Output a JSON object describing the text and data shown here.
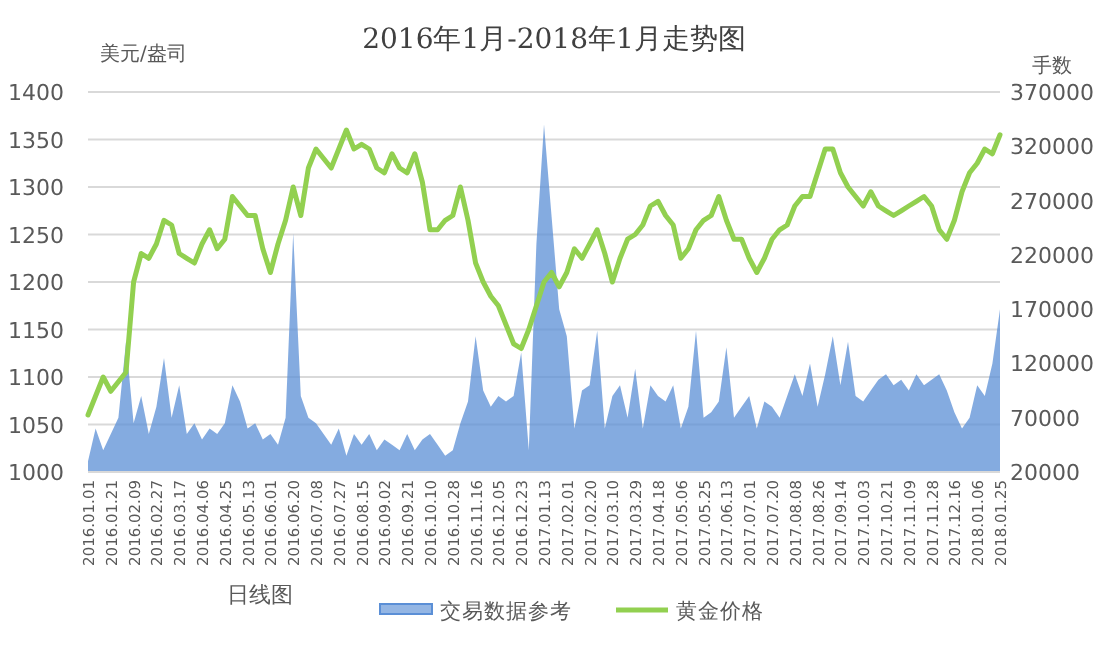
{
  "chart_data": {
    "type": "line",
    "title": "2016年1月-2018年1月走势图",
    "xlabel": "日线图",
    "ylabel": "美元/盎司",
    "y2label": "手数",
    "categories": [
      "2016.01.01",
      null,
      null,
      "2016.01.21",
      null,
      null,
      "2016.02.09",
      null,
      null,
      "2016.02.27",
      null,
      null,
      "2016.03.17",
      null,
      null,
      "2016.04.06",
      null,
      null,
      "2016.04.25",
      null,
      null,
      "2016.05.13",
      null,
      null,
      "2016.06.01",
      null,
      null,
      "2016.06.20",
      null,
      null,
      "2016.07.08",
      null,
      null,
      "2016.07.27",
      null,
      null,
      "2016.08.15",
      null,
      null,
      "2016.09.02",
      null,
      null,
      "2016.09.21",
      null,
      null,
      "2016.10.10",
      null,
      null,
      "2016.10.28",
      null,
      null,
      "2016.11.16",
      null,
      null,
      "2016.12.05",
      null,
      null,
      "2016.12.23",
      null,
      null,
      "2017.01.13",
      null,
      null,
      "2017.02.01",
      null,
      null,
      "2017.02.20",
      null,
      null,
      "2017.03.10",
      null,
      null,
      "2017.03.29",
      null,
      null,
      "2017.04.18",
      null,
      null,
      "2017.05.06",
      null,
      null,
      "2017.05.25",
      null,
      null,
      "2017.06.13",
      null,
      null,
      "2017.07.01",
      null,
      null,
      "2017.07.20",
      null,
      null,
      "2017.08.08",
      null,
      null,
      "2017.08.26",
      null,
      null,
      "2017.09.14",
      null,
      null,
      "2017.10.03",
      null,
      null,
      "2017.10.21",
      null,
      null,
      "2017.11.09",
      null,
      null,
      "2017.11.28",
      null,
      null,
      "2017.12.16",
      null,
      null,
      "2018.01.06",
      null,
      null,
      "2018.01.25"
    ],
    "series": [
      {
        "name": "交易数据参考",
        "type": "area",
        "axis": "y2",
        "color": "#5b8fd6",
        "values": [
          30000,
          60000,
          40000,
          55000,
          70000,
          140000,
          65000,
          90000,
          55000,
          80000,
          125000,
          70000,
          100000,
          55000,
          65000,
          50000,
          60000,
          55000,
          65000,
          100000,
          85000,
          60000,
          65000,
          50000,
          55000,
          45000,
          70000,
          240000,
          90000,
          70000,
          65000,
          55000,
          45000,
          60000,
          35000,
          55000,
          45000,
          55000,
          40000,
          50000,
          45000,
          40000,
          55000,
          40000,
          50000,
          55000,
          45000,
          35000,
          40000,
          65000,
          85000,
          145000,
          95000,
          80000,
          90000,
          85000,
          90000,
          130000,
          40000,
          230000,
          340000,
          255000,
          170000,
          145000,
          60000,
          95000,
          100000,
          150000,
          60000,
          90000,
          100000,
          70000,
          115000,
          60000,
          100000,
          90000,
          85000,
          100000,
          60000,
          80000,
          150000,
          70000,
          75000,
          85000,
          135000,
          70000,
          80000,
          90000,
          60000,
          85000,
          80000,
          70000,
          90000,
          110000,
          90000,
          120000,
          80000,
          110000,
          145000,
          100000,
          140000,
          90000,
          85000,
          95000,
          105000,
          110000,
          100000,
          105000,
          95000,
          110000,
          100000,
          105000,
          110000,
          95000,
          75000,
          60000,
          70000,
          100000,
          90000,
          120000,
          170000
        ]
      },
      {
        "name": "黄金价格",
        "axis": "y",
        "color": "#92d050",
        "values": [
          1060,
          1080,
          1100,
          1085,
          1095,
          1105,
          1200,
          1230,
          1225,
          1240,
          1265,
          1260,
          1230,
          1225,
          1220,
          1240,
          1255,
          1235,
          1245,
          1290,
          1280,
          1270,
          1270,
          1235,
          1210,
          1240,
          1265,
          1300,
          1270,
          1320,
          1340,
          1330,
          1320,
          1340,
          1360,
          1340,
          1345,
          1340,
          1320,
          1315,
          1335,
          1320,
          1315,
          1335,
          1305,
          1255,
          1255,
          1265,
          1270,
          1300,
          1265,
          1220,
          1200,
          1185,
          1175,
          1155,
          1135,
          1130,
          1150,
          1175,
          1200,
          1210,
          1195,
          1210,
          1235,
          1225,
          1240,
          1255,
          1230,
          1200,
          1225,
          1245,
          1250,
          1260,
          1280,
          1285,
          1270,
          1260,
          1225,
          1235,
          1255,
          1265,
          1270,
          1290,
          1265,
          1245,
          1245,
          1225,
          1210,
          1225,
          1245,
          1255,
          1260,
          1280,
          1290,
          1290,
          1315,
          1340,
          1340,
          1315,
          1300,
          1290,
          1280,
          1295,
          1280,
          1275,
          1270,
          1275,
          1280,
          1285,
          1290,
          1280,
          1255,
          1245,
          1265,
          1295,
          1315,
          1325,
          1340,
          1335,
          1355
        ]
      }
    ],
    "ylim": [
      1000,
      1400
    ],
    "yticks": [
      1000,
      1050,
      1100,
      1150,
      1200,
      1250,
      1300,
      1350,
      1400
    ],
    "y2lim": [
      20000,
      370000
    ],
    "y2ticks": [
      20000,
      70000,
      120000,
      170000,
      220000,
      270000,
      320000,
      370000
    ],
    "grid": "y",
    "legend": "bottom"
  }
}
